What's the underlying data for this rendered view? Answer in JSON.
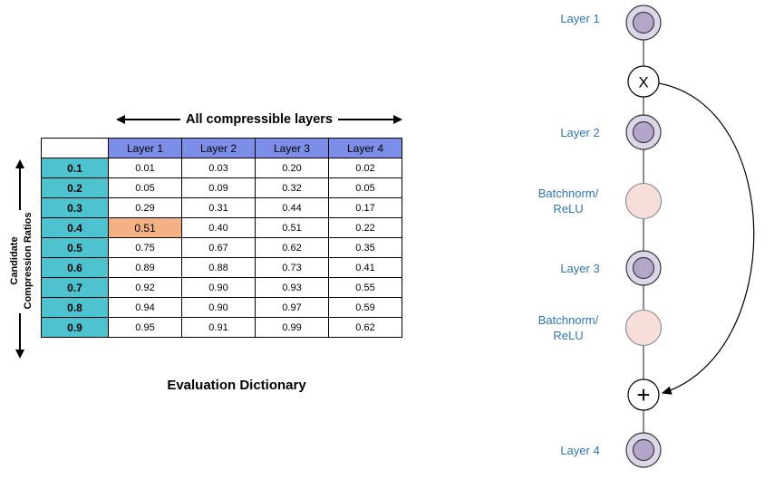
{
  "table": {
    "top_header": "All compressible layers",
    "side_header_line1": "Candidate",
    "side_header_line2": "Compression Ratios",
    "caption": "Evaluation Dictionary",
    "corner_label": "",
    "columns": [
      "Layer 1",
      "Layer 2",
      "Layer 3",
      "Layer 4"
    ],
    "rows": [
      {
        "ratio": "0.1",
        "values": [
          "0.01",
          "0.03",
          "0.20",
          "0.02"
        ]
      },
      {
        "ratio": "0.2",
        "values": [
          "0.05",
          "0.09",
          "0.32",
          "0.05"
        ]
      },
      {
        "ratio": "0.3",
        "values": [
          "0.29",
          "0.31",
          "0.44",
          "0.17"
        ]
      },
      {
        "ratio": "0.4",
        "values": [
          "0.51",
          "0.40",
          "0.51",
          "0.22"
        ],
        "highlight_col": 0
      },
      {
        "ratio": "0.5",
        "values": [
          "0.75",
          "0.67",
          "0.62",
          "0.35"
        ]
      },
      {
        "ratio": "0.6",
        "values": [
          "0.89",
          "0.88",
          "0.73",
          "0.41"
        ]
      },
      {
        "ratio": "0.7",
        "values": [
          "0.92",
          "0.90",
          "0.93",
          "0.55"
        ]
      },
      {
        "ratio": "0.8",
        "values": [
          "0.94",
          "0.90",
          "0.97",
          "0.59"
        ]
      },
      {
        "ratio": "0.9",
        "values": [
          "0.95",
          "0.91",
          "0.99",
          "0.62"
        ]
      }
    ],
    "colors": {
      "header_bg": "#7C8EE8",
      "ratio_bg": "#4EC2CE",
      "highlight_bg": "#F4B183"
    }
  },
  "diagram": {
    "labels": {
      "layer1": "Layer 1",
      "layer2": "Layer 2",
      "layer3": "Layer 3",
      "layer4": "Layer 4",
      "bn1_line1": "Batchnorm/",
      "bn1_line2": "ReLU",
      "bn2_line1": "Batchnorm/",
      "bn2_line2": "ReLU"
    },
    "multiply_symbol": "X",
    "add_symbol": "+",
    "colors": {
      "label_text": "#2E75B6",
      "layer_outer": "#DCD6E8",
      "layer_inner": "#B3A6C9",
      "batchnorm_fill": "#F8DEDB",
      "op_fill": "#FFFFFF"
    }
  }
}
